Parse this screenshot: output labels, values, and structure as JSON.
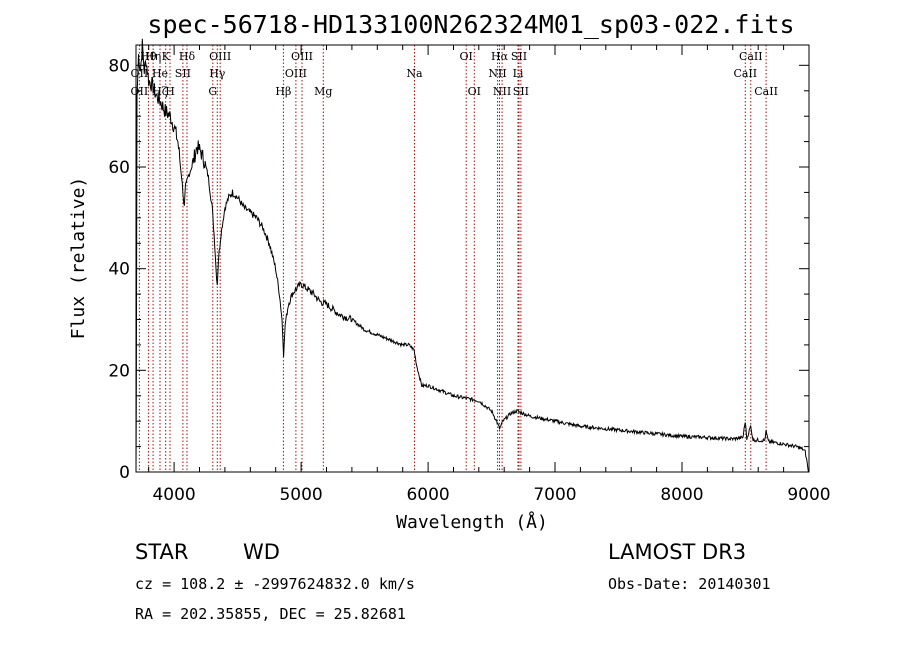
{
  "chart_data": {
    "type": "line",
    "title": "spec-56718-HD133100N262324M01_sp03-022.fits",
    "xlabel": "Wavelength (Å)",
    "ylabel": "Flux (relative)",
    "xlim": [
      3700,
      9000
    ],
    "ylim": [
      0,
      84
    ],
    "x_ticks": [
      4000,
      5000,
      6000,
      7000,
      8000,
      9000
    ],
    "y_ticks": [
      0,
      20,
      40,
      60,
      80
    ],
    "grid": false,
    "series": [
      {
        "name": "flux",
        "points": [
          [
            3700,
            0
          ],
          [
            3702,
            13
          ],
          [
            3708,
            74
          ],
          [
            3720,
            82
          ],
          [
            3735,
            79
          ],
          [
            3750,
            84
          ],
          [
            3765,
            79
          ],
          [
            3780,
            81
          ],
          [
            3800,
            77
          ],
          [
            3830,
            76
          ],
          [
            3860,
            74
          ],
          [
            3890,
            73
          ],
          [
            3930,
            71
          ],
          [
            3970,
            70
          ],
          [
            4000,
            68
          ],
          [
            4030,
            65
          ],
          [
            4060,
            58
          ],
          [
            4080,
            52
          ],
          [
            4090,
            56
          ],
          [
            4110,
            58
          ],
          [
            4150,
            61
          ],
          [
            4180,
            64
          ],
          [
            4210,
            63
          ],
          [
            4240,
            61
          ],
          [
            4270,
            58
          ],
          [
            4300,
            52
          ],
          [
            4320,
            45
          ],
          [
            4330,
            40
          ],
          [
            4340,
            37
          ],
          [
            4350,
            42
          ],
          [
            4370,
            47
          ],
          [
            4400,
            52
          ],
          [
            4430,
            54
          ],
          [
            4460,
            55
          ],
          [
            4500,
            54
          ],
          [
            4550,
            52
          ],
          [
            4600,
            51
          ],
          [
            4650,
            50
          ],
          [
            4700,
            48
          ],
          [
            4750,
            45
          ],
          [
            4800,
            40
          ],
          [
            4830,
            35
          ],
          [
            4850,
            30
          ],
          [
            4862,
            23
          ],
          [
            4875,
            29
          ],
          [
            4900,
            33
          ],
          [
            4930,
            35
          ],
          [
            4960,
            36
          ],
          [
            5000,
            37
          ],
          [
            5050,
            36
          ],
          [
            5100,
            35
          ],
          [
            5150,
            33.5
          ],
          [
            5200,
            33
          ],
          [
            5300,
            31
          ],
          [
            5400,
            30
          ],
          [
            5500,
            28
          ],
          [
            5600,
            27
          ],
          [
            5700,
            26
          ],
          [
            5800,
            25
          ],
          [
            5850,
            25
          ],
          [
            5890,
            24
          ],
          [
            5910,
            21
          ],
          [
            5950,
            17
          ],
          [
            6000,
            17
          ],
          [
            6100,
            16
          ],
          [
            6200,
            15
          ],
          [
            6300,
            14.5
          ],
          [
            6400,
            14
          ],
          [
            6500,
            12
          ],
          [
            6540,
            10
          ],
          [
            6563,
            8.5
          ],
          [
            6590,
            10
          ],
          [
            6650,
            11.5
          ],
          [
            6700,
            12
          ],
          [
            6800,
            11
          ],
          [
            6900,
            10.5
          ],
          [
            7000,
            10
          ],
          [
            7200,
            9
          ],
          [
            7400,
            8.5
          ],
          [
            7600,
            8
          ],
          [
            7800,
            7.5
          ],
          [
            8000,
            7
          ],
          [
            8200,
            6.8
          ],
          [
            8400,
            6.5
          ],
          [
            8480,
            6.8
          ],
          [
            8498,
            10
          ],
          [
            8510,
            6.5
          ],
          [
            8540,
            9
          ],
          [
            8560,
            6.3
          ],
          [
            8650,
            6.2
          ],
          [
            8662,
            8
          ],
          [
            8680,
            6
          ],
          [
            8800,
            5.5
          ],
          [
            8900,
            5
          ],
          [
            8950,
            4.5
          ],
          [
            8970,
            4
          ],
          [
            8985,
            2
          ],
          [
            8995,
            0
          ]
        ]
      }
    ],
    "line_labels": [
      {
        "text": "Hθ",
        "wl": 3798,
        "row": 0
      },
      {
        "text": "Hη",
        "wl": 3835,
        "row": 0
      },
      {
        "text": "K",
        "wl": 3934,
        "row": 0
      },
      {
        "text": "Hδ",
        "wl": 4102,
        "row": 0
      },
      {
        "text": "OIII",
        "wl": 4363,
        "row": 0
      },
      {
        "text": "OIII",
        "wl": 5007,
        "row": 0
      },
      {
        "text": "OI",
        "wl": 6300,
        "row": 0
      },
      {
        "text": "Hα",
        "wl": 6563,
        "row": 0
      },
      {
        "text": "SII",
        "wl": 6716,
        "row": 0
      },
      {
        "text": "CaII",
        "wl": 8542,
        "row": 0
      },
      {
        "text": "OII",
        "wl": 3727,
        "row": 1
      },
      {
        "text": "He",
        "wl": 3889,
        "row": 1
      },
      {
        "text": "SII",
        "wl": 4069,
        "row": 1
      },
      {
        "text": "Hγ",
        "wl": 4340,
        "row": 1
      },
      {
        "text": "OIII",
        "wl": 4959,
        "row": 1
      },
      {
        "text": "Na",
        "wl": 5893,
        "row": 1
      },
      {
        "text": "NII",
        "wl": 6548,
        "row": 1
      },
      {
        "text": "Li",
        "wl": 6708,
        "row": 1
      },
      {
        "text": "CaII",
        "wl": 8498,
        "row": 1
      },
      {
        "text": "OII",
        "wl": 3727,
        "row": 2
      },
      {
        "text": "Hζ",
        "wl": 3889,
        "row": 2
      },
      {
        "text": "H",
        "wl": 3968,
        "row": 2
      },
      {
        "text": "G",
        "wl": 4305,
        "row": 2
      },
      {
        "text": "Hβ",
        "wl": 4861,
        "row": 2
      },
      {
        "text": "Mg",
        "wl": 5175,
        "row": 2
      },
      {
        "text": "OI",
        "wl": 6364,
        "row": 2
      },
      {
        "text": "NII",
        "wl": 6583,
        "row": 2
      },
      {
        "text": "SII",
        "wl": 6731,
        "row": 2
      },
      {
        "text": "CaII",
        "wl": 8662,
        "row": 2
      }
    ],
    "reference_lines": [
      3727,
      3798,
      3835,
      3889,
      3934,
      3968,
      4069,
      4102,
      4305,
      4340,
      4363,
      4861,
      4959,
      5007,
      5175,
      5893,
      6300,
      6364,
      6548,
      6563,
      6583,
      6708,
      6716,
      6731,
      8498,
      8542,
      8662
    ],
    "reference_line_color": "#a01010"
  },
  "footer": {
    "class_label": "STAR",
    "subclass_label": "WD",
    "survey": "LAMOST DR3",
    "cz_text": "cz = 108.2 ± -2997624832.0 km/s",
    "obs_date": "Obs-Date: 20140301",
    "radec": "RA = 202.35855, DEC =  25.82681"
  }
}
